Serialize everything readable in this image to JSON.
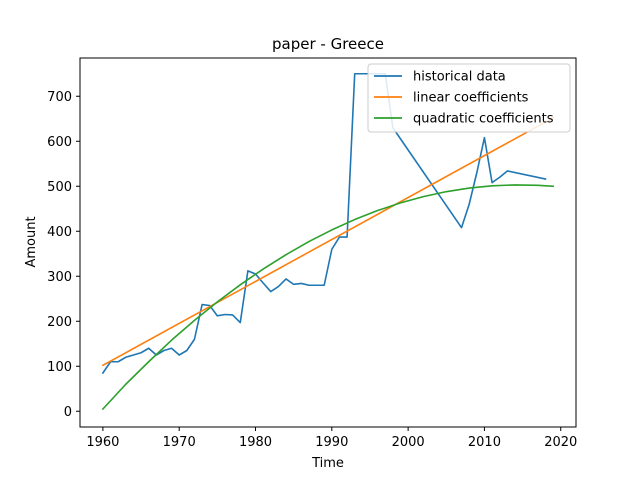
{
  "chart_data": {
    "type": "line",
    "title": "paper - Greece",
    "xlabel": "Time",
    "ylabel": "Amount",
    "xlim": [
      1957,
      2022
    ],
    "ylim": [
      -35,
      785
    ],
    "x_ticks": [
      1960,
      1970,
      1980,
      1990,
      2000,
      2010,
      2020
    ],
    "y_ticks": [
      0,
      100,
      200,
      300,
      400,
      500,
      600,
      700
    ],
    "grid": false,
    "legend_position": "top-right",
    "series": [
      {
        "name": "historical data",
        "color": "#1f77b4",
        "x": [
          1960,
          1961,
          1962,
          1963,
          1964,
          1965,
          1966,
          1967,
          1968,
          1969,
          1970,
          1971,
          1972,
          1973,
          1974,
          1975,
          1976,
          1977,
          1978,
          1979,
          1980,
          1981,
          1982,
          1983,
          1984,
          1985,
          1986,
          1987,
          1988,
          1989,
          1990,
          1991,
          1992,
          1993,
          1994,
          1995,
          1996,
          1997,
          1998,
          2007,
          2008,
          2009,
          2010,
          2011,
          2012,
          2013,
          2018
        ],
        "y": [
          85,
          110,
          110,
          120,
          125,
          130,
          140,
          125,
          135,
          140,
          125,
          135,
          160,
          237,
          235,
          212,
          215,
          214,
          197,
          312,
          305,
          285,
          266,
          277,
          294,
          282,
          284,
          280,
          280,
          280,
          360,
          387,
          387,
          750,
          750,
          750,
          750,
          750,
          630,
          408,
          460,
          530,
          608,
          508,
          520,
          534,
          516
        ]
      },
      {
        "name": "linear coefficients",
        "color": "#ff7f0e",
        "x": [
          1960,
          2019
        ],
        "y": [
          102,
          652
        ]
      },
      {
        "name": "quadratic coefficients",
        "color": "#2ca02c",
        "x": [
          1960,
          1963,
          1966,
          1969,
          1972,
          1975,
          1978,
          1981,
          1984,
          1987,
          1990,
          1993,
          1996,
          1999,
          2002,
          2005,
          2008,
          2011,
          2014,
          2017,
          2019
        ],
        "y": [
          5,
          60,
          110,
          158,
          202,
          243,
          281,
          316,
          348,
          377,
          403,
          426,
          446,
          463,
          477,
          488,
          496,
          501,
          503,
          502,
          500
        ]
      }
    ]
  }
}
